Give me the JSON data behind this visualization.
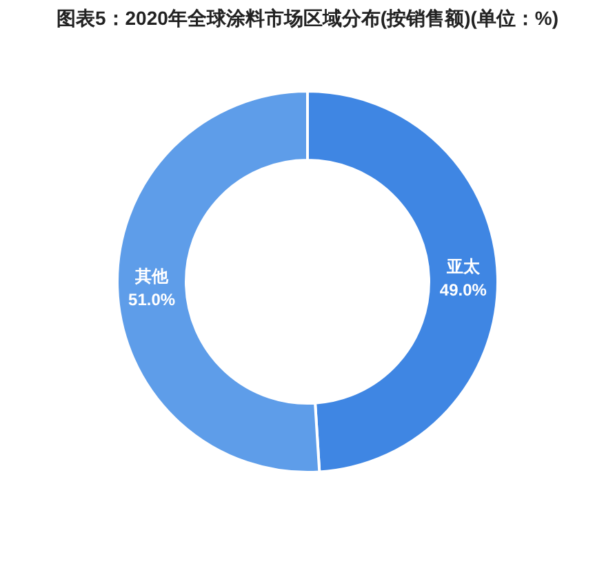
{
  "chart_data": {
    "type": "donut",
    "title": "图表5：2020年全球涂料市场区域分布(按销售额)(单位：%)",
    "categories": [
      "亚太",
      "其他"
    ],
    "values": [
      49.0,
      51.0
    ],
    "colors": [
      "#3f86e3",
      "#5e9de9"
    ],
    "value_labels": [
      "49.0%",
      "51.0%"
    ]
  }
}
